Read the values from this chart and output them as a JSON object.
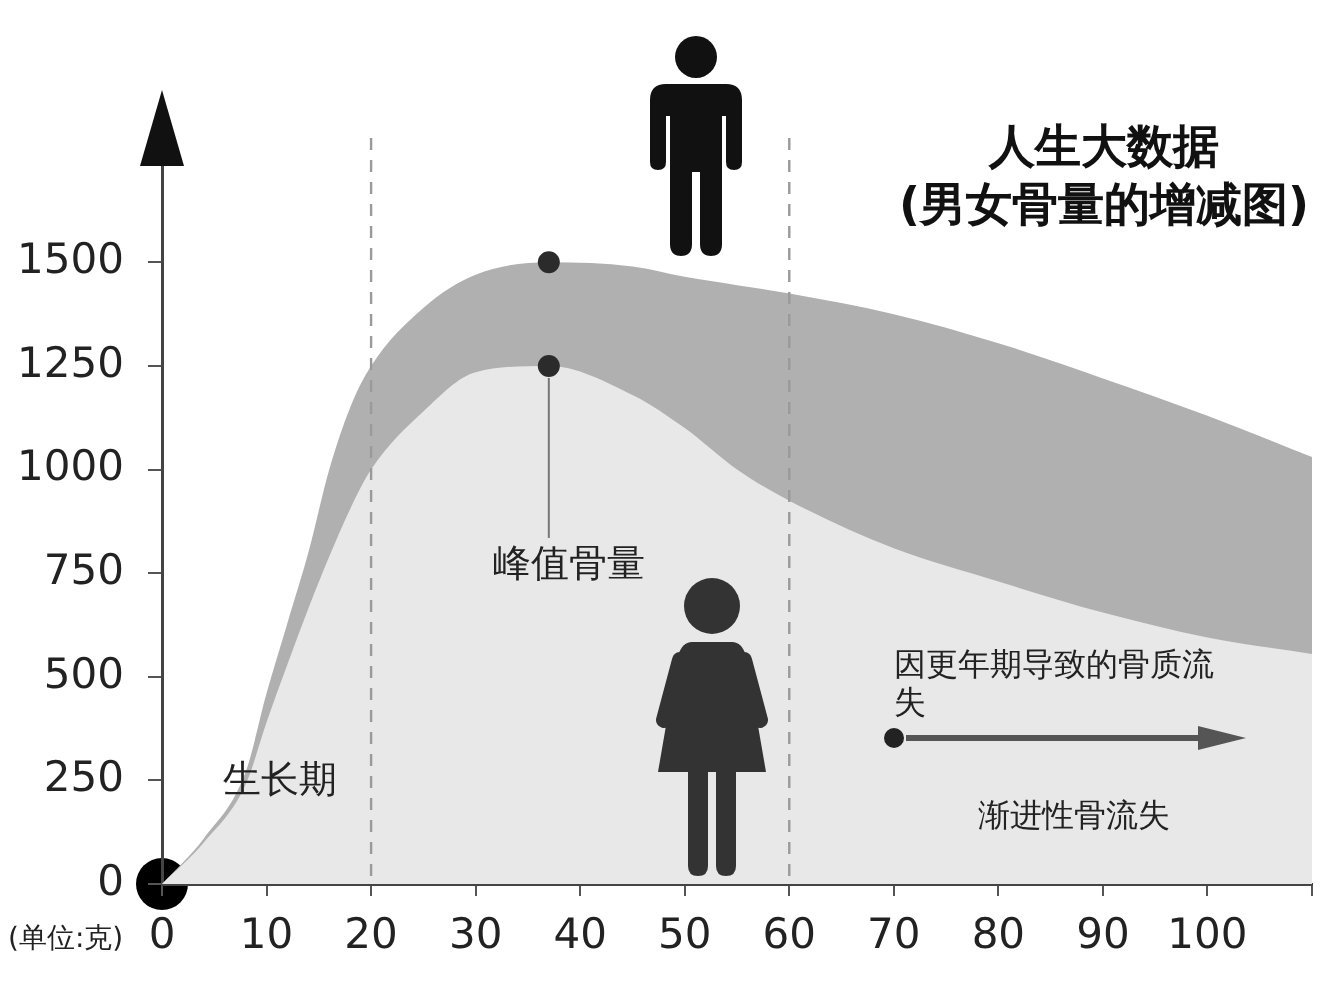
{
  "chart_data": {
    "type": "area",
    "title": "人生大数据",
    "subtitle": "(男女骨量的增减图)",
    "ylabel": "(单位:克)",
    "x": [
      0,
      4,
      8,
      10,
      12,
      14,
      16,
      18,
      20,
      25,
      30,
      37,
      45,
      50,
      55,
      60,
      70,
      80,
      90,
      100,
      110
    ],
    "series": [
      {
        "color": "#b0b0b0",
        "values": [
          0,
          110,
          270,
          460,
          630,
          800,
          1000,
          1150,
          1250,
          1390,
          1470,
          1500,
          1490,
          1465,
          1445,
          1425,
          1375,
          1305,
          1220,
          1130,
          1030
        ]
      },
      {
        "color": "#e8e8e8",
        "values": [
          0,
          100,
          240,
          390,
          530,
          665,
          790,
          905,
          1000,
          1140,
          1235,
          1250,
          1180,
          1100,
          1000,
          925,
          810,
          730,
          655,
          595,
          555
        ]
      },
      {
        "type": "scatter",
        "x": [
          37,
          37
        ],
        "values": [
          1500,
          1250
        ],
        "color": "#2b2b2b",
        "marker": "circle"
      }
    ],
    "xlim": [
      0,
      110
    ],
    "xticks": [
      0,
      10,
      20,
      30,
      40,
      50,
      60,
      70,
      80,
      90,
      100,
      {
        "value": 110,
        "label": null
      }
    ],
    "ylim": [
      0,
      1800
    ],
    "yticks": [
      0,
      250,
      500,
      750,
      1000,
      1250,
      1500
    ],
    "ref_lines": [
      {
        "axis": "x",
        "value": 20,
        "line_style": "dashed",
        "color": "#9a9a9a"
      },
      {
        "axis": "x",
        "value": 60,
        "line_style": "dashed",
        "color": "#9a9a9a"
      }
    ],
    "annotations": [
      "生长期",
      {
        "text": "峰值骨量",
        "x": 37,
        "y": 1250
      },
      {
        "text": "因更年期导致的骨质流失",
        "x": 70,
        "y": 350
      },
      "渐进性骨流失"
    ]
  }
}
